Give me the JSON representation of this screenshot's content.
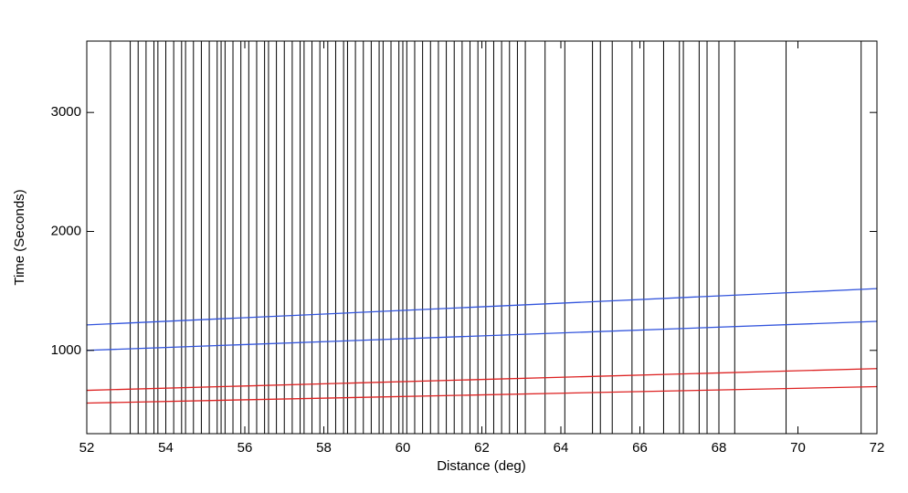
{
  "chart_data": {
    "type": "line",
    "x_label": "Distance (deg)",
    "y_label": "Time (Seconds)",
    "xlim": [
      52,
      72
    ],
    "xticks": [
      52,
      54,
      56,
      58,
      60,
      62,
      64,
      66,
      68,
      70,
      72
    ],
    "ylim": [
      300,
      3600
    ],
    "yticks": [
      1000,
      2000,
      3000
    ],
    "trace_color": "#000000",
    "traces": [
      52.6,
      53.1,
      53.3,
      53.5,
      53.7,
      53.8,
      54.0,
      54.2,
      54.4,
      54.5,
      54.7,
      54.9,
      55.1,
      55.3,
      55.4,
      55.5,
      55.7,
      55.9,
      56.1,
      56.3,
      56.5,
      56.6,
      56.8,
      57.0,
      57.2,
      57.4,
      57.5,
      57.7,
      57.9,
      58.1,
      58.3,
      58.5,
      58.6,
      58.8,
      59.0,
      59.2,
      59.4,
      59.5,
      59.7,
      59.9,
      60.0,
      60.1,
      60.3,
      60.5,
      60.7,
      60.9,
      61.1,
      61.3,
      61.5,
      61.7,
      61.9,
      62.1,
      62.3,
      62.5,
      62.7,
      62.9,
      63.1,
      63.6,
      64.1,
      64.8,
      65.0,
      65.3,
      65.8,
      66.1,
      66.6,
      67.0,
      67.1,
      67.5,
      67.7,
      68.0,
      68.4,
      69.7,
      71.6
    ],
    "series": [
      {
        "color": "#3355dd",
        "x": [
          52,
          72
        ],
        "values": [
          1214,
          1519
        ]
      },
      {
        "color": "#3355dd",
        "x": [
          52,
          72
        ],
        "values": [
          1000,
          1244
        ]
      },
      {
        "color": "#dd2222",
        "x": [
          52,
          72
        ],
        "values": [
          664,
          847
        ]
      },
      {
        "color": "#dd2222",
        "x": [
          52,
          72
        ],
        "values": [
          557,
          695
        ]
      }
    ]
  }
}
